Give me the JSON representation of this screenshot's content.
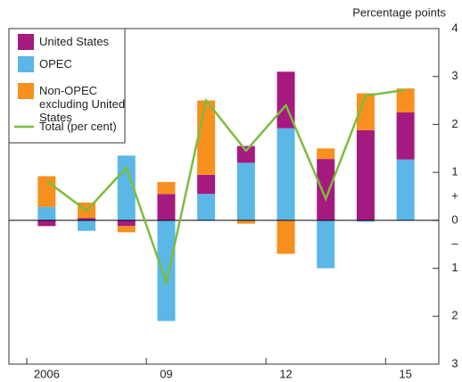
{
  "chart_data": {
    "type": "bar",
    "stacked": true,
    "y_label": "Percentage points",
    "categories": [
      "2006",
      null,
      null,
      "09",
      null,
      null,
      "12",
      null,
      null,
      "15"
    ],
    "series": [
      {
        "name": "United States",
        "color": "#a6197f",
        "values": [
          -0.12,
          0.05,
          -0.12,
          0.55,
          0.4,
          0.35,
          1.18,
          1.28,
          1.88,
          0.98
        ]
      },
      {
        "name": "OPEC",
        "color": "#5ab7e6",
        "values": [
          0.28,
          -0.22,
          1.35,
          -2.1,
          0.55,
          1.2,
          1.92,
          -1.0,
          -0.03,
          1.27
        ]
      },
      {
        "name": "Non-OPEC excluding United States",
        "color": "#f7901e",
        "values": [
          0.64,
          0.32,
          -0.13,
          0.25,
          1.55,
          -0.07,
          -0.7,
          0.22,
          0.77,
          0.5
        ]
      },
      {
        "name": "Total (per cent)",
        "color": "#7cbd3c",
        "type": "line",
        "values": [
          0.82,
          0.2,
          1.1,
          -1.3,
          2.5,
          1.45,
          2.4,
          0.45,
          2.6,
          2.72
        ]
      }
    ],
    "ylim": [
      -3,
      4
    ],
    "yticks": [
      {
        "value": -3,
        "label": "3"
      },
      {
        "value": -2,
        "label": "2"
      },
      {
        "value": -1,
        "label": "1"
      },
      0,
      1,
      2,
      3,
      4
    ],
    "sign_labels": [
      {
        "value": 0.5,
        "label": "+"
      },
      {
        "value": -0.5,
        "label": "–"
      }
    ],
    "axis_side": "right"
  }
}
